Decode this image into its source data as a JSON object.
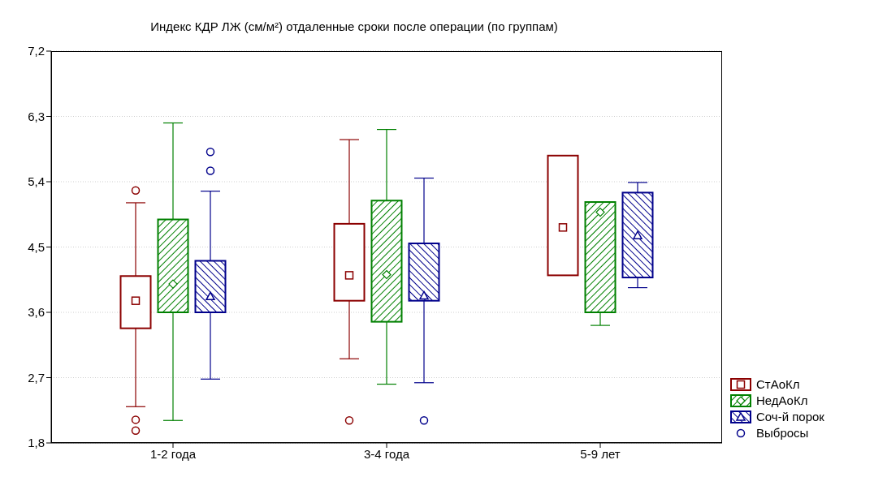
{
  "chart_data": {
    "type": "box",
    "title": "Индекс КДР ЛЖ (см/м²) отдаленные сроки после операции (по группам)",
    "categories": [
      "1-2 года",
      "3-4 года",
      "5-9 лет"
    ],
    "ylim": [
      1.8,
      7.2
    ],
    "yticks": [
      {
        "value": 1.8,
        "label": "1,8"
      },
      {
        "value": 2.7,
        "label": "2,7"
      },
      {
        "value": 3.6,
        "label": "3,6"
      },
      {
        "value": 4.5,
        "label": "4,5"
      },
      {
        "value": 5.4,
        "label": "5,4"
      },
      {
        "value": 6.3,
        "label": "6,3"
      },
      {
        "value": 7.2,
        "label": "7,2"
      }
    ],
    "grid": "y",
    "legend": "bottom right",
    "annotations": [
      "Выбросы"
    ],
    "series": [
      {
        "name": "СтАоКл",
        "color": "#8b0000",
        "marker": "square",
        "boxes": [
          {
            "low": 2.3,
            "q1": 3.38,
            "median": 3.76,
            "q3": 4.1,
            "high": 5.11,
            "outliers": [
              5.28,
              2.12,
              1.97
            ]
          },
          {
            "low": 2.96,
            "q1": 3.76,
            "median": 4.11,
            "q3": 4.82,
            "high": 5.98,
            "outliers": [
              2.11
            ]
          },
          {
            "low": 4.11,
            "q1": 4.11,
            "median": 4.77,
            "q3": 5.76,
            "high": 5.76
          }
        ]
      },
      {
        "name": "НедАоКл",
        "color": "#008000",
        "marker": "diamond",
        "boxes": [
          {
            "low": 2.11,
            "q1": 3.6,
            "median": 3.99,
            "q3": 4.88,
            "high": 6.21
          },
          {
            "low": 2.61,
            "q1": 3.47,
            "median": 4.12,
            "q3": 5.14,
            "high": 6.12
          },
          {
            "low": 3.42,
            "q1": 3.6,
            "median": 4.98,
            "q3": 5.12,
            "high": 5.12
          }
        ]
      },
      {
        "name": "Соч-й порок",
        "color": "#00008b",
        "marker": "triangle",
        "boxes": [
          {
            "low": 2.68,
            "q1": 3.6,
            "median": 3.82,
            "q3": 4.31,
            "high": 5.27,
            "outliers": [
              5.81,
              5.55
            ]
          },
          {
            "low": 2.63,
            "q1": 3.76,
            "median": 3.83,
            "q3": 4.55,
            "high": 5.45,
            "outliers": [
              2.11
            ]
          },
          {
            "low": 3.94,
            "q1": 4.08,
            "median": 4.66,
            "q3": 5.25,
            "high": 5.39
          }
        ]
      }
    ]
  }
}
